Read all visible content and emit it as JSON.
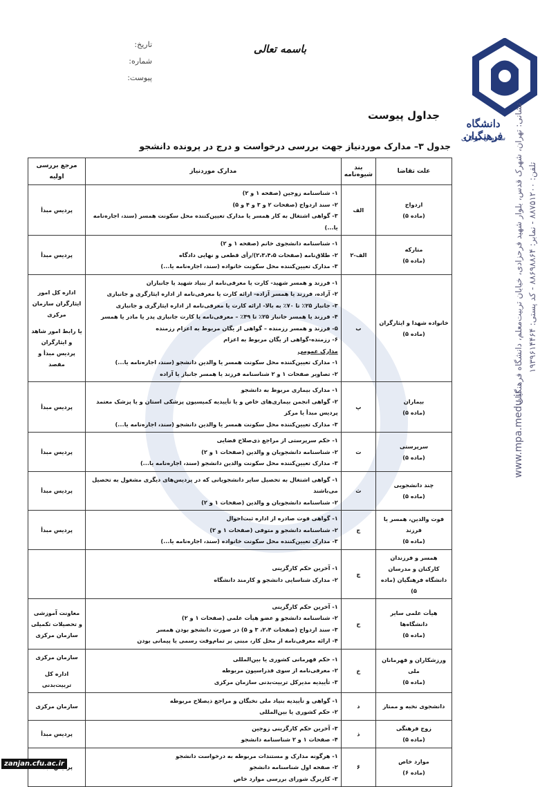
{
  "header": {
    "bismillah": "باسمه تعالی",
    "date_label": "تاریخ:",
    "number_label": "شماره:",
    "attachment_label": "پیوست:",
    "logo_name": "دانشگاه فرهنگیان",
    "logo_sub": "سازمان مرکزی"
  },
  "section_title": "جداول پیوست",
  "table": {
    "title": "جدول ۳– مدارک موردنیاز جهت بررسی درخواست و درج در پرونده دانشجو",
    "columns": [
      "علت تقاضا",
      "بند شیوه‌نامه",
      "مدارک موردنیاز",
      "مرجع بررسی اولیه"
    ],
    "rows": [
      {
        "reason": [
          "ازدواج",
          "(ماده ۵)"
        ],
        "clause": "الف",
        "docs": [
          "۱- شناسنامه زوجین (صفحه ۱ و ۲)",
          "۲- سند ازدواج (صفحات ۲ و ۳ و ۴ و ۵)",
          "۳- گواهی اشتغال به کار همسر یا مدارک تعیین‌کننده محل سکونت همسر (سند، اجاره‌نامه یا...)"
        ],
        "ref": [
          "پردیس مبدأ"
        ]
      },
      {
        "reason": [
          "متارکه",
          "(ماده ۵)"
        ],
        "clause": "الف-۲",
        "docs": [
          "۱- شناسنامه دانشجوی خانم (صفحه ۱ و ۲)",
          "۲- طلاق‌نامه (صفحات ۲،۳،۴،۵)/رأی قطعی و نهایی دادگاه",
          "۳- مدارک تعیین‌کننده محل سکونت خانواده (سند، اجاره‌نامه یا...)"
        ],
        "ref": [
          "پردیس مبدأ"
        ]
      },
      {
        "reason": [
          "خانواده شهدا و ایثارگران",
          "(ماده ۵)"
        ],
        "clause": "ب",
        "docs": [
          "۱- فرزند و همسر شهید- کارت یا معرفی‌نامه از بنیاد شهید یا جانبازان",
          "۲- آزاده، فرزند یا همسر آزاده- ارائه کارت یا معرفی‌نامه از اداره ایثارگری و جانبازی",
          "۳- جانباز ۲۵٪ تا ۷۰٪ به بالا- ارائه کارت یا معرفی‌نامه از اداره ایثارگری و جانبازی",
          "۴- فرزند یا همسر جانباز ۲۵٪ تا ۴۹٪ – معرفی‌نامه یا کارت جانبازی پدر یا مادر یا همسر",
          "۵- فرزند و همسر رزمنده – گواهی از یگان مربوط به اعزام رزمنده",
          "۶- رزمنده-گواهی از یگان مربوط به اعزام"
        ],
        "docs_general_title": "مدارک عمومی",
        "docs_general": [
          "۱- مدارک تعیین‌کننده محل سکونت همسر یا والدین دانشجو (سند، اجاره‌نامه یا...)",
          "۲- تصاویر صفحات ۱ و ۲ شناسنامه فرزند یا همسر جانباز یا آزاده"
        ],
        "ref": [
          "اداره کل امور ایثارگران سازمان مرکزی",
          "یا رابط امور شاهد و ایثارگران پردیس مبدأ و مقصد"
        ]
      },
      {
        "reason": [
          "بیماران",
          "(ماده ۵)"
        ],
        "clause": "پ",
        "docs": [
          "۱- مدارک بیماری مربوط به دانشجو",
          "۲- گواهی انجمن بیماری‌های خاص و یا تأییدیه کمیسیون پزشکی استان و یا پزشک معتمد پردیس مبدأ یا مرکز",
          "۳- مدارک تعیین‌کننده محل سکونت همسر یا والدین دانشجو (سند، اجاره‌نامه یا...)"
        ],
        "ref": [
          "پردیس مبدأ"
        ]
      },
      {
        "reason": [
          "سرپرستی",
          "(ماده ۵)"
        ],
        "clause": "ت",
        "docs": [
          "۱- حکم سرپرستی از مراجع ذی‌صلاح قضایی",
          "۲- شناسنامه دانشجویان و والدین (صفحات ۱ و ۲)",
          "۳- مدارک تعیین‌کننده محل سکونت والدین دانشجو (سند، اجاره‌نامه یا...)"
        ],
        "ref": [
          "پردیس مبدأ"
        ]
      },
      {
        "reason": [
          "چند دانشجویی",
          "(ماده ۵)"
        ],
        "clause": "ث",
        "docs": [
          "۱- گواهی اشتغال به تحصیل سایر دانشجویانی که در پردیس‌های دیگری مشغول به تحصیل می‌باشند",
          "۲- شناسنامه دانشجویان و والدین (صفحات ۱ و ۲)"
        ],
        "ref": [
          "پردیس مبدأ"
        ]
      },
      {
        "reason": [
          "فوت والدین، همسر یا فرزند",
          "(ماده ۵)"
        ],
        "clause": "ج",
        "docs": [
          "۱- گواهی فوت صادره از اداره ثبت‌احوال",
          "۲- شناسنامه دانشجو و متوفی (صفحات ۱ و ۲)",
          "۳- مدارک تعیین‌کننده محل سکونت خانواده (سند، اجاره‌نامه یا...)"
        ],
        "ref": [
          "پردیس مبدأ"
        ]
      },
      {
        "reason": [
          "همسر و فرزندان کارکنان و مدرسان دانشگاه فرهنگیان (ماده ۵)"
        ],
        "clause": "چ",
        "docs": [
          "۱- آخرین حکم کارگزینی",
          "۲- مدارک شناسایی دانشجو و کارمند دانشگاه"
        ],
        "ref": []
      },
      {
        "reason": [
          "هیأت علمی سایر دانشگاه‌ها",
          "(ماده ۵)"
        ],
        "clause": "ح",
        "docs": [
          "۱- آخرین حکم کارگزینی",
          "۲- شناسنامه دانشجو و عضو هیأت علمی (صفحات ۱ و ۲)",
          "۳- سند ازدواج (صفحات ۲،۴، ۳ و ۵) در صورت دانشجو بودن همسر",
          "۴- ارائه معرفی‌نامه از محل کار، مبنی بر تمام‌وقت رسمی یا پیمانی بودن"
        ],
        "ref": [
          "معاونت آموزشی و تحصیلات تکمیلی سازمان مرکزی"
        ]
      },
      {
        "reason": [
          "ورزشکاران و قهرمانان ملی",
          "(ماده ۵)"
        ],
        "clause": "خ",
        "docs": [
          "۱- حکم قهرمانی کشوری یا بین‌المللی",
          "۲- معرفی‌نامه از سوی فدراسیون مربوطه",
          "۳- تأییدیه مدیرکل تربیت‌بدنی سازمان مرکزی"
        ],
        "ref": [
          "سازمان مرکزی",
          "اداره کل تربیت‌بدنی"
        ]
      },
      {
        "reason": [
          "دانشجوی نخبه و ممتاز"
        ],
        "clause": "د",
        "docs": [
          "۱- گواهی و تأییدیه بنیاد ملی نخبگان و مراجع ذیصلاح مربوطه",
          "۲- حکم کشوری یا بین‌المللی"
        ],
        "ref": [
          "سازمان مرکزی"
        ]
      },
      {
        "reason": [
          "زوج فرهنگی",
          "(ماده ۵)"
        ],
        "clause": "ذ",
        "docs": [
          "۳- آخرین حکم کارگزینی زوجین",
          "۴- صفحات ۱ و ۲ شناسنامه دانشجو"
        ],
        "ref": [
          "پردیس مبدأ"
        ]
      },
      {
        "reason": [
          "موارد خاص",
          "(ماده ۶)"
        ],
        "clause": "۶",
        "docs": [
          "۱- هرگونه مدارک و مستندات مربوطه به درخواست دانشجو",
          "۲- صفحه اول شناسنامه دانشجو",
          "۳- کاربرگ شورای بررسی موارد خاص"
        ],
        "ref": [
          "پردیس مبدأ"
        ]
      }
    ]
  },
  "side": {
    "address": "نشانی: تهران، شهرک قدس، بلوار شهید فرحزادی، خیابان تربیت‌معلم، دانشگاه فرهنگیان",
    "phone": "تلفن: ۸۸۷۵۱۲۰۰ - نمابر: ۸۸۶۹۸۸۶۴ - کد پستی: ۱۹۳۹۶۱۴۴۶۴",
    "website": "www.mpa.medu.ir"
  },
  "footer": "zanjan.cfu.ac.ir"
}
